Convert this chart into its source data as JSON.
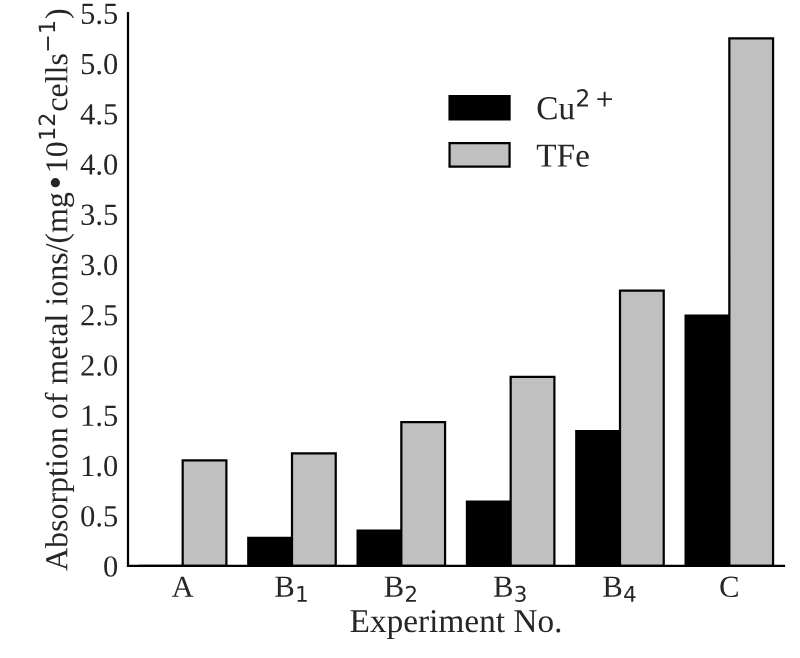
{
  "chart_data": {
    "type": "bar",
    "xlabel": "Experiment No.",
    "ylabel": "Absorption of metal ions/(mg•10$^{12}$cells$^{−1}$)",
    "categories": [
      "A",
      "B$_{1}$",
      "B$_{2}$",
      "B$_{3}$",
      "B$_{4}$",
      "C"
    ],
    "series": [
      {
        "name": "Cu$^{2+}$",
        "color": "#000000",
        "values": [
          0,
          0.28,
          0.35,
          0.64,
          1.34,
          2.49
        ]
      },
      {
        "name": "TFe",
        "color": "#c0c0c0",
        "values": [
          1.05,
          1.12,
          1.43,
          1.88,
          2.74,
          5.25
        ]
      }
    ],
    "ylim": [
      0,
      5.5
    ],
    "yticks": [
      {
        "value": 0,
        "label": "0"
      },
      0.5,
      {
        "value": 1,
        "label": "1.0"
      },
      1.5,
      {
        "value": 2,
        "label": "2.0"
      },
      2.5,
      {
        "value": 3,
        "label": "3.0"
      },
      3.5,
      {
        "value": 4,
        "label": "4.0"
      },
      4.5,
      {
        "value": 5,
        "label": "5.0"
      },
      5.5
    ],
    "legend": "top",
    "grid": false
  }
}
